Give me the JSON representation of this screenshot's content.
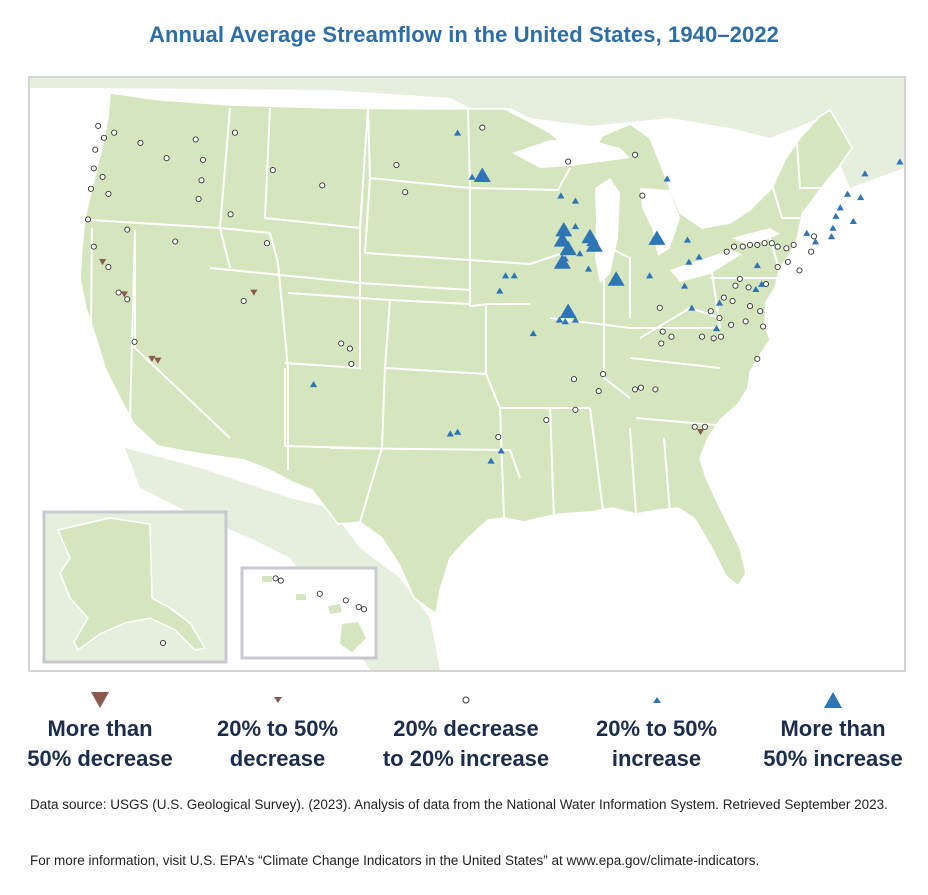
{
  "title": "Annual Average Streamflow in the United States, 1940–2022",
  "legend": [
    {
      "symbol": "large-down-triangle-icon",
      "line1": "More than",
      "line2": "50% decrease",
      "color": "#8b5a4e"
    },
    {
      "symbol": "small-down-triangle-icon",
      "line1": "20% to 50%",
      "line2": "decrease",
      "color": "#8b5a4e"
    },
    {
      "symbol": "circle-icon",
      "line1": "20% decrease",
      "line2": "to 20% increase",
      "color": "#ffffff"
    },
    {
      "symbol": "small-up-triangle-icon",
      "line1": "20% to 50%",
      "line2": "increase",
      "color": "#2e75b6"
    },
    {
      "symbol": "large-up-triangle-icon",
      "line1": "More than",
      "line2": "50% increase",
      "color": "#2e75b6"
    }
  ],
  "colors": {
    "land": "#d5e6bf",
    "neighbor_land": "#e6efdd",
    "state_border": "#ffffff",
    "frame": "#d4d4d4",
    "decrease": "#8b5a4e",
    "increase": "#2e75b6",
    "no_change_fill": "#ffffff",
    "no_change_stroke": "#333333",
    "title": "#2e6ea6",
    "legend_text": "#1b2c4c"
  },
  "map": {
    "insets": [
      "Alaska",
      "Hawaii"
    ],
    "stations": [
      {
        "lon": -123.3,
        "lat": 48.3,
        "cat": "circle"
      },
      {
        "lon": -122.9,
        "lat": 47.6,
        "cat": "circle"
      },
      {
        "lon": -123.5,
        "lat": 46.9,
        "cat": "circle"
      },
      {
        "lon": -122.2,
        "lat": 47.9,
        "cat": "circle"
      },
      {
        "lon": -120.4,
        "lat": 47.3,
        "cat": "circle"
      },
      {
        "lon": -118.6,
        "lat": 46.4,
        "cat": "circle"
      },
      {
        "lon": -123.6,
        "lat": 45.8,
        "cat": "circle"
      },
      {
        "lon": -123.0,
        "lat": 45.3,
        "cat": "circle"
      },
      {
        "lon": -123.8,
        "lat": 44.6,
        "cat": "circle"
      },
      {
        "lon": -122.6,
        "lat": 44.3,
        "cat": "circle"
      },
      {
        "lon": -124.0,
        "lat": 42.8,
        "cat": "circle"
      },
      {
        "lon": -123.6,
        "lat": 41.2,
        "cat": "circle"
      },
      {
        "lon": -121.3,
        "lat": 42.2,
        "cat": "circle"
      },
      {
        "lon": -116.6,
        "lat": 47.5,
        "cat": "circle"
      },
      {
        "lon": -116.1,
        "lat": 46.3,
        "cat": "circle"
      },
      {
        "lon": -116.2,
        "lat": 45.1,
        "cat": "circle"
      },
      {
        "lon": -116.4,
        "lat": 44.0,
        "cat": "circle"
      },
      {
        "lon": -114.2,
        "lat": 43.1,
        "cat": "circle"
      },
      {
        "lon": -113.9,
        "lat": 47.9,
        "cat": "circle"
      },
      {
        "lon": -111.3,
        "lat": 45.7,
        "cat": "circle"
      },
      {
        "lon": -107.9,
        "lat": 44.8,
        "cat": "circle"
      },
      {
        "lon": -111.7,
        "lat": 41.4,
        "cat": "circle"
      },
      {
        "lon": -118.0,
        "lat": 41.5,
        "cat": "circle"
      },
      {
        "lon": -122.6,
        "lat": 40.0,
        "cat": "circle"
      },
      {
        "lon": -121.9,
        "lat": 38.5,
        "cat": "circle"
      },
      {
        "lon": -121.3,
        "lat": 38.1,
        "cat": "circle"
      },
      {
        "lon": -120.8,
        "lat": 35.6,
        "cat": "circle"
      },
      {
        "lon": -113.3,
        "lat": 38.0,
        "cat": "circle"
      },
      {
        "lon": -106.6,
        "lat": 35.5,
        "cat": "circle"
      },
      {
        "lon": -106.0,
        "lat": 35.2,
        "cat": "circle"
      },
      {
        "lon": -105.9,
        "lat": 34.3,
        "cat": "circle"
      },
      {
        "lon": -102.8,
        "lat": 46.0,
        "cat": "circle"
      },
      {
        "lon": -102.2,
        "lat": 44.4,
        "cat": "circle"
      },
      {
        "lon": -96.9,
        "lat": 48.2,
        "cat": "circle"
      },
      {
        "lon": -91.0,
        "lat": 46.2,
        "cat": "circle"
      },
      {
        "lon": -86.4,
        "lat": 46.6,
        "cat": "circle"
      },
      {
        "lon": -85.9,
        "lat": 44.2,
        "cat": "circle"
      },
      {
        "lon": -84.7,
        "lat": 37.6,
        "cat": "circle"
      },
      {
        "lon": -84.5,
        "lat": 36.2,
        "cat": "circle"
      },
      {
        "lon": -83.9,
        "lat": 35.9,
        "cat": "circle"
      },
      {
        "lon": -84.6,
        "lat": 35.5,
        "cat": "circle"
      },
      {
        "lon": -88.6,
        "lat": 33.7,
        "cat": "circle"
      },
      {
        "lon": -90.6,
        "lat": 33.4,
        "cat": "circle"
      },
      {
        "lon": -90.5,
        "lat": 31.6,
        "cat": "circle"
      },
      {
        "lon": -88.9,
        "lat": 32.7,
        "cat": "circle"
      },
      {
        "lon": -86.4,
        "lat": 32.8,
        "cat": "circle"
      },
      {
        "lon": -86.0,
        "lat": 32.9,
        "cat": "circle"
      },
      {
        "lon": -85.0,
        "lat": 32.8,
        "cat": "circle"
      },
      {
        "lon": -82.3,
        "lat": 30.6,
        "cat": "circle"
      },
      {
        "lon": -81.6,
        "lat": 30.6,
        "cat": "circle"
      },
      {
        "lon": -95.8,
        "lat": 30.0,
        "cat": "circle"
      },
      {
        "lon": -92.5,
        "lat": 31.0,
        "cat": "circle"
      },
      {
        "lon": -80.1,
        "lat": 40.9,
        "cat": "circle"
      },
      {
        "lon": -79.6,
        "lat": 41.2,
        "cat": "circle"
      },
      {
        "lon": -79.0,
        "lat": 41.2,
        "cat": "circle"
      },
      {
        "lon": -78.5,
        "lat": 41.3,
        "cat": "circle"
      },
      {
        "lon": -78.0,
        "lat": 41.3,
        "cat": "circle"
      },
      {
        "lon": -77.5,
        "lat": 41.4,
        "cat": "circle"
      },
      {
        "lon": -77.0,
        "lat": 41.4,
        "cat": "circle"
      },
      {
        "lon": -76.6,
        "lat": 41.2,
        "cat": "circle"
      },
      {
        "lon": -76.0,
        "lat": 41.1,
        "cat": "circle"
      },
      {
        "lon": -75.5,
        "lat": 41.3,
        "cat": "circle"
      },
      {
        "lon": -74.1,
        "lat": 41.8,
        "cat": "circle"
      },
      {
        "lon": -74.3,
        "lat": 40.9,
        "cat": "circle"
      },
      {
        "lon": -76.6,
        "lat": 40.0,
        "cat": "circle"
      },
      {
        "lon": -75.9,
        "lat": 40.3,
        "cat": "circle"
      },
      {
        "lon": -75.1,
        "lat": 39.8,
        "cat": "circle"
      },
      {
        "lon": -79.2,
        "lat": 39.3,
        "cat": "circle"
      },
      {
        "lon": -79.5,
        "lat": 38.9,
        "cat": "circle"
      },
      {
        "lon": -78.6,
        "lat": 38.8,
        "cat": "circle"
      },
      {
        "lon": -77.4,
        "lat": 39.0,
        "cat": "circle"
      },
      {
        "lon": -80.3,
        "lat": 38.2,
        "cat": "circle"
      },
      {
        "lon": -79.7,
        "lat": 38.0,
        "cat": "circle"
      },
      {
        "lon": -78.5,
        "lat": 37.7,
        "cat": "circle"
      },
      {
        "lon": -77.8,
        "lat": 37.4,
        "cat": "circle"
      },
      {
        "lon": -81.2,
        "lat": 37.4,
        "cat": "circle"
      },
      {
        "lon": -80.6,
        "lat": 37.0,
        "cat": "circle"
      },
      {
        "lon": -79.8,
        "lat": 36.6,
        "cat": "circle"
      },
      {
        "lon": -78.8,
        "lat": 36.8,
        "cat": "circle"
      },
      {
        "lon": -77.6,
        "lat": 36.5,
        "cat": "circle"
      },
      {
        "lon": -81.8,
        "lat": 35.9,
        "cat": "circle"
      },
      {
        "lon": -81.0,
        "lat": 35.8,
        "cat": "circle"
      },
      {
        "lon": -80.5,
        "lat": 35.9,
        "cat": "circle"
      },
      {
        "lon": -78.0,
        "lat": 34.6,
        "cat": "circle"
      },
      {
        "lon": -91.5,
        "lat": 44.2,
        "cat": "up"
      },
      {
        "lon": -90.5,
        "lat": 43.9,
        "cat": "up"
      },
      {
        "lon": -90.5,
        "lat": 42.4,
        "cat": "up"
      },
      {
        "lon": -89.5,
        "lat": 41.4,
        "cat": "up"
      },
      {
        "lon": -90.2,
        "lat": 40.8,
        "cat": "up"
      },
      {
        "lon": -91.2,
        "lat": 40.5,
        "cat": "up"
      },
      {
        "lon": -89.6,
        "lat": 39.9,
        "cat": "up"
      },
      {
        "lon": -91.6,
        "lat": 36.9,
        "cat": "up"
      },
      {
        "lon": -91.2,
        "lat": 36.8,
        "cat": "up"
      },
      {
        "lon": -90.5,
        "lat": 36.9,
        "cat": "up"
      },
      {
        "lon": -93.4,
        "lat": 36.1,
        "cat": "up"
      },
      {
        "lon": -95.7,
        "lat": 38.6,
        "cat": "up"
      },
      {
        "lon": -95.3,
        "lat": 39.5,
        "cat": "up"
      },
      {
        "lon": -94.7,
        "lat": 39.5,
        "cat": "up"
      },
      {
        "lon": -98.6,
        "lat": 47.9,
        "cat": "up"
      },
      {
        "lon": -97.6,
        "lat": 45.3,
        "cat": "up"
      },
      {
        "lon": -84.2,
        "lat": 45.2,
        "cat": "up"
      },
      {
        "lon": -82.8,
        "lat": 41.6,
        "cat": "up"
      },
      {
        "lon": -82.0,
        "lat": 40.6,
        "cat": "up"
      },
      {
        "lon": -83.0,
        "lat": 38.9,
        "cat": "up"
      },
      {
        "lon": -82.7,
        "lat": 40.3,
        "cat": "up"
      },
      {
        "lon": -85.4,
        "lat": 39.5,
        "cat": "up"
      },
      {
        "lon": -82.5,
        "lat": 37.6,
        "cat": "up"
      },
      {
        "lon": -78.0,
        "lat": 40.1,
        "cat": "up"
      },
      {
        "lon": -77.7,
        "lat": 39.0,
        "cat": "up"
      },
      {
        "lon": -78.1,
        "lat": 38.7,
        "cat": "up"
      },
      {
        "lon": -80.6,
        "lat": 37.9,
        "cat": "up"
      },
      {
        "lon": -80.8,
        "lat": 36.4,
        "cat": "up"
      },
      {
        "lon": -74.6,
        "lat": 42.0,
        "cat": "up"
      },
      {
        "lon": -74.0,
        "lat": 41.5,
        "cat": "up"
      },
      {
        "lon": -72.9,
        "lat": 41.8,
        "cat": "up"
      },
      {
        "lon": -72.8,
        "lat": 42.3,
        "cat": "up"
      },
      {
        "lon": -72.6,
        "lat": 43.0,
        "cat": "up"
      },
      {
        "lon": -72.3,
        "lat": 43.5,
        "cat": "up"
      },
      {
        "lon": -71.8,
        "lat": 44.3,
        "cat": "up"
      },
      {
        "lon": -70.9,
        "lat": 44.1,
        "cat": "up"
      },
      {
        "lon": -70.6,
        "lat": 45.5,
        "cat": "up"
      },
      {
        "lon": -68.2,
        "lat": 46.2,
        "cat": "up"
      },
      {
        "lon": -71.4,
        "lat": 42.7,
        "cat": "up"
      },
      {
        "lon": -108.5,
        "lat": 33.1,
        "cat": "up"
      },
      {
        "lon": -99.1,
        "lat": 30.2,
        "cat": "up"
      },
      {
        "lon": -98.6,
        "lat": 30.3,
        "cat": "up"
      },
      {
        "lon": -95.6,
        "lat": 29.2,
        "cat": "up"
      },
      {
        "lon": -96.3,
        "lat": 28.6,
        "cat": "up"
      },
      {
        "lon": -96.9,
        "lat": 45.4,
        "cat": "big-up"
      },
      {
        "lon": -91.3,
        "lat": 42.2,
        "cat": "big-up"
      },
      {
        "lon": -91.4,
        "lat": 41.6,
        "cat": "big-up"
      },
      {
        "lon": -91.0,
        "lat": 41.1,
        "cat": "big-up"
      },
      {
        "lon": -91.4,
        "lat": 40.3,
        "cat": "big-up"
      },
      {
        "lon": -89.5,
        "lat": 41.8,
        "cat": "big-up"
      },
      {
        "lon": -89.2,
        "lat": 41.3,
        "cat": "big-up"
      },
      {
        "lon": -87.7,
        "lat": 39.3,
        "cat": "big-up"
      },
      {
        "lon": -84.9,
        "lat": 41.7,
        "cat": "big-up"
      },
      {
        "lon": -91.0,
        "lat": 37.4,
        "cat": "big-up"
      },
      {
        "lon": -123.0,
        "lat": 40.3,
        "cat": "down"
      },
      {
        "lon": -121.5,
        "lat": 38.4,
        "cat": "down"
      },
      {
        "lon": -112.6,
        "lat": 38.5,
        "cat": "down"
      },
      {
        "lon": -119.6,
        "lat": 34.6,
        "cat": "down"
      },
      {
        "lon": -119.2,
        "lat": 34.5,
        "cat": "down"
      },
      {
        "lon": -81.9,
        "lat": 30.3,
        "cat": "down"
      }
    ],
    "alaska_stations": [
      {
        "lon": -133.0,
        "lat": 58.5,
        "cat": "circle"
      }
    ],
    "hawaii_stations": [
      {
        "lon": -159.6,
        "lat": 22.1,
        "cat": "circle"
      },
      {
        "lon": -159.4,
        "lat": 22.0,
        "cat": "circle"
      },
      {
        "lon": -157.9,
        "lat": 21.4,
        "cat": "circle"
      },
      {
        "lon": -156.9,
        "lat": 21.1,
        "cat": "circle"
      },
      {
        "lon": -156.4,
        "lat": 20.8,
        "cat": "circle"
      },
      {
        "lon": -156.2,
        "lat": 20.7,
        "cat": "circle"
      }
    ]
  },
  "footnotes": {
    "source": "Data source: USGS (U.S. Geological Survey). (2023). Analysis of data from the National Water Information System. Retrieved September 2023.",
    "info": "For more information, visit U.S. EPA’s “Climate Change Indicators in the United States” at www.epa.gov/climate-indicators."
  }
}
